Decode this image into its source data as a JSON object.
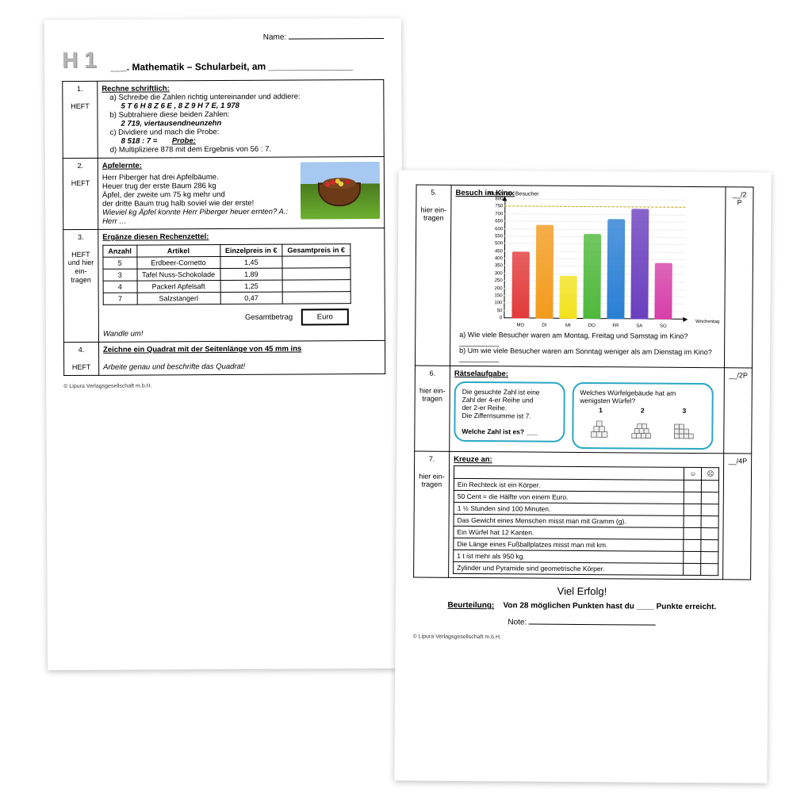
{
  "page1": {
    "name_label": "Name:",
    "badge": "H 1",
    "title_prefix": "___. Mathematik – Schularbeit, am ________________",
    "task1": {
      "num": "1.",
      "loc": "HEFT",
      "heading": "Rechne schriftlich:",
      "a_label": "a)",
      "a_text": "Schreibe die Zahlen richtig untereinander und  addiere:",
      "a_values": "5 T  6 H  8 Z  6 E ,     8 Z   9 H  7 E,   1 978",
      "b_label": "b)",
      "b_text": "Subtrahiere diese beiden Zahlen:",
      "b_values": "2 719,    viertausendneunzehn",
      "c_label": "c)",
      "c_text": "Dividiere und mach die  Probe:",
      "c_values": "8 518  :  7 =",
      "c_probe": "Probe:",
      "d_label": "d)",
      "d_text": "Multipliziere  878  mit dem Ergebnis von 56 : 7."
    },
    "task2": {
      "num": "2.",
      "loc": "HEFT",
      "heading": "Apfelernte:",
      "line1": "Herr Piberger  hat drei Apfelbäume.",
      "line2": "Heuer trug der erste Baum 286 kg",
      "line3": "Äpfel, der zweite um 75 kg mehr und",
      "line4": "der dritte Baum trug halb soviel wie der erste!",
      "question": "Wieviel kg Äpfel konnte Herr Piberger heuer ernten?  A.: Herr …"
    },
    "task3": {
      "num": "3.",
      "loc": "HEFT und hier ein-tragen",
      "heading": "Ergänze diesen Rechenzettel:",
      "cols": [
        "Anzahl",
        "Artikel",
        "Einzelpreis in €",
        "Gesamtpreis in €"
      ],
      "rows": [
        [
          "5",
          "Erdbeer-Cornetto",
          "1,45",
          ""
        ],
        [
          "3",
          "Tafel Nuss-Schokolade",
          "1,89",
          ""
        ],
        [
          "4",
          "Packerl  Apfelsaft",
          "1,25",
          ""
        ],
        [
          "7",
          "Salzstangerl",
          "0,47",
          ""
        ]
      ],
      "total_label": "Gesamtbetrag",
      "euro": "Euro",
      "wandle": "Wandle um!"
    },
    "task4": {
      "num": "4.",
      "loc": "HEFT",
      "heading": "Zeichne ein Quadrat mit der Seitenlänge von 45 mm  ins",
      "sub": "Arbeite genau und beschrifte das Quadrat!"
    },
    "copyright": "© Lipura Verlagsgesellschaft m.b.H."
  },
  "page2": {
    "task5": {
      "num": "5.",
      "loc": "hier ein-tragen",
      "heading": "Besuch im  Kino:",
      "points": "__/2 P",
      "chart": {
        "title": "Anzahl der Besucher",
        "ylabel": "",
        "xlabel": "Wochentag",
        "ymax": 800,
        "ystep": 50,
        "ref_line": 750,
        "categories": [
          "MO",
          "DI",
          "MI",
          "DO",
          "FR",
          "SA",
          "SO"
        ],
        "values": [
          450,
          630,
          290,
          570,
          670,
          740,
          380
        ],
        "colors": [
          "#e23a3a",
          "#f29b1d",
          "#f2e21d",
          "#4fb83a",
          "#2a7fd4",
          "#6a3fbf",
          "#d63fa8"
        ],
        "axis_color": "#000000",
        "ref_color": "#c9a700"
      },
      "qa_label": "a)",
      "qa": "Wie viele Besucher waren  am Montag, Freitag und Samstag im Kino? __________",
      "qb_label": "b)",
      "qb": "Um wie viele Besucher  waren am Sonntag weniger als  am Dienstag im Kino? __________"
    },
    "task6": {
      "num": "6.",
      "loc": "hier ein-tragen",
      "heading": "Rätselaufgabe:",
      "points": "__/2P",
      "box1_l1": "Die gesuchte Zahl ist eine",
      "box1_l2": "Zahl der  4-er Reihe und",
      "box1_l3": "der 2-er Reihe.",
      "box1_l4": "Die Ziffernsumme ist 7.",
      "box1_q": "Welche Zahl ist es? ___",
      "box2_q": "Welches Würfelgebäude hat am wenigsten Würfel?",
      "box2_labels": [
        "1",
        "2",
        "3"
      ]
    },
    "task7": {
      "num": "7.",
      "loc": "hier ein-tragen",
      "heading": "Kreuze  an:",
      "points": "__/4P",
      "happy": "☺",
      "sad": "☹",
      "rows": [
        "Ein Rechteck ist ein Körper.",
        "50 Cent  =   die Hälfte von einem Euro.",
        "1 ½ Stunden sind 100 Minuten.",
        "Das Gewicht eines Menschen misst man  mit Gramm (g).",
        "Ein Würfel hat 12 Kanten.",
        "Die Länge eines Fußballplatzes misst  man  mit  km.",
        "1 t ist mehr als 950 kg.",
        "Zylinder und Pyramide sind geometrische Körper."
      ]
    },
    "footer": {
      "goodluck": "Viel Erfolg!",
      "beurteilung_label": "Beurteilung:",
      "beurteilung": "Von 28 möglichen Punkten hast du ____ Punkte erreicht.",
      "note_label": "Note:",
      "copyright": "© Lipura Verlagsgesellschaft m.b.H."
    }
  }
}
